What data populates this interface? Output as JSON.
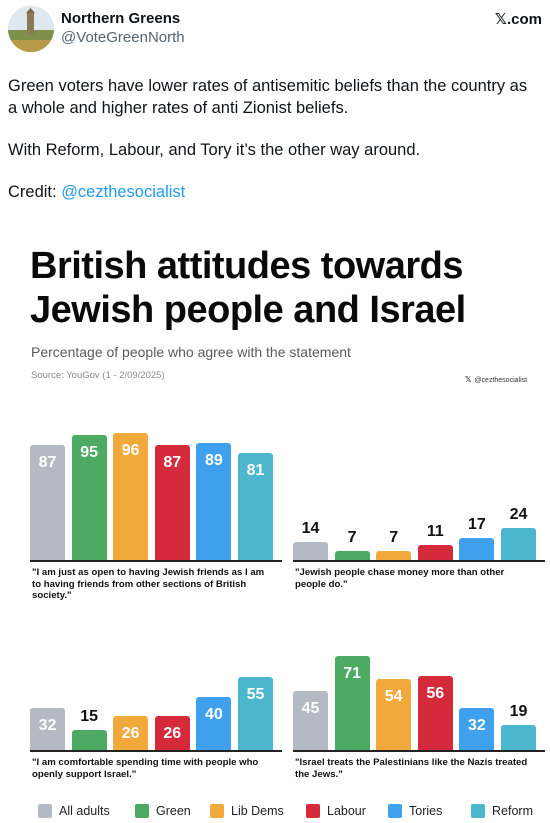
{
  "tweet": {
    "author_name": "Northern Greens",
    "author_handle": "@VoteGreenNorth",
    "platform_label": "𝕏.com",
    "text_p1": "Green voters have lower rates of antisemitic beliefs than the country as a whole and higher rates of anti Zionist beliefs.",
    "text_p2": "With Reform, Labour, and Tory it’s the other way around.",
    "credit_label": "Credit: ",
    "credit_handle": "@cezthesocialist"
  },
  "infographic": {
    "title_line1": "British attitudes towards",
    "title_line2": "Jewish people and Israel",
    "subtitle": "Percentage of people who agree with the statement",
    "source": "Source: YouGov (1 - 2/09/2025)",
    "credit_handle": "@cezthesocialist"
  },
  "colors": {
    "All adults": "#b3bac4",
    "Green": "#4caa62",
    "Lib Dems": "#f2a93b",
    "Labour": "#d42a3c",
    "Tories": "#3fa1ee",
    "Reform": "#4cb6cf"
  },
  "chart_data": [
    {
      "type": "bar",
      "title": "\"I am just as open to having Jewish friends as I am to having friends from other sections of British society.\"",
      "categories": [
        "All adults",
        "Green",
        "Lib Dems",
        "Labour",
        "Tories",
        "Reform"
      ],
      "values": [
        87,
        95,
        96,
        87,
        89,
        81
      ],
      "ylim": [
        0,
        100
      ]
    },
    {
      "type": "bar",
      "title": "\"Jewish people chase money more than other people do.\"",
      "categories": [
        "All adults",
        "Green",
        "Lib Dems",
        "Labour",
        "Tories",
        "Reform"
      ],
      "values": [
        14,
        7,
        7,
        11,
        17,
        24
      ],
      "ylim": [
        0,
        100
      ]
    },
    {
      "type": "bar",
      "title": "\"I am comfortable spending time with people who openly support Israel.\"",
      "categories": [
        "All adults",
        "Green",
        "Lib Dems",
        "Labour",
        "Tories",
        "Reform"
      ],
      "values": [
        32,
        15,
        26,
        26,
        40,
        55
      ],
      "ylim": [
        0,
        100
      ]
    },
    {
      "type": "bar",
      "title": "\"Israel treats the Palestinians like the Nazis treated the Jews.\"",
      "categories": [
        "All adults",
        "Green",
        "Lib Dems",
        "Labour",
        "Tories",
        "Reform"
      ],
      "values": [
        45,
        71,
        54,
        56,
        32,
        19
      ],
      "ylim": [
        0,
        100
      ]
    }
  ],
  "legend": [
    "All adults",
    "Green",
    "Lib Dems",
    "Labour",
    "Tories",
    "Reform"
  ]
}
